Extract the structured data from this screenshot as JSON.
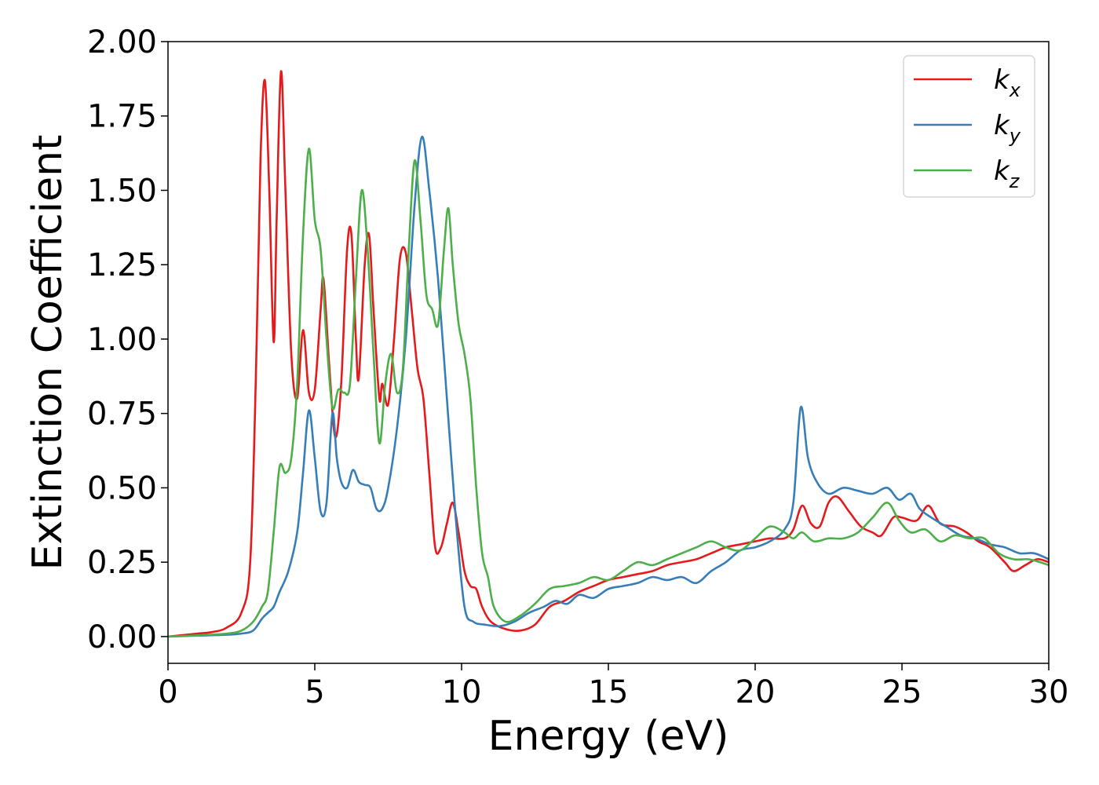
{
  "chart_data": {
    "type": "line",
    "xlabel": "Energy (eV)",
    "ylabel": "Extinction Coefficient",
    "xlim": [
      0,
      30
    ],
    "ylim": [
      -0.09,
      2.0
    ],
    "xticks": [
      "0",
      "5",
      "10",
      "15",
      "20",
      "25",
      "30"
    ],
    "yticks": [
      "0.00",
      "0.25",
      "0.50",
      "0.75",
      "1.00",
      "1.25",
      "1.50",
      "1.75",
      "2.00"
    ],
    "grid": false,
    "legend_position": "top-right",
    "series": [
      {
        "name": "k",
        "subscript": "x",
        "color": "#e41a1c",
        "points": [
          [
            0,
            0.0
          ],
          [
            1,
            0.01
          ],
          [
            1.5,
            0.015
          ],
          [
            2,
            0.03
          ],
          [
            2.5,
            0.08
          ],
          [
            2.8,
            0.25
          ],
          [
            3.0,
            0.9
          ],
          [
            3.15,
            1.6
          ],
          [
            3.3,
            1.87
          ],
          [
            3.45,
            1.5
          ],
          [
            3.6,
            0.99
          ],
          [
            3.7,
            1.4
          ],
          [
            3.85,
            1.9
          ],
          [
            4.0,
            1.5
          ],
          [
            4.2,
            0.95
          ],
          [
            4.4,
            0.8
          ],
          [
            4.6,
            1.03
          ],
          [
            4.8,
            0.82
          ],
          [
            5.0,
            0.83
          ],
          [
            5.2,
            1.1
          ],
          [
            5.3,
            1.2
          ],
          [
            5.5,
            0.9
          ],
          [
            5.7,
            0.67
          ],
          [
            5.9,
            0.85
          ],
          [
            6.1,
            1.3
          ],
          [
            6.25,
            1.35
          ],
          [
            6.4,
            1.0
          ],
          [
            6.5,
            0.87
          ],
          [
            6.7,
            1.25
          ],
          [
            6.85,
            1.35
          ],
          [
            7.0,
            1.1
          ],
          [
            7.2,
            0.8
          ],
          [
            7.3,
            0.85
          ],
          [
            7.5,
            0.78
          ],
          [
            7.7,
            1.0
          ],
          [
            7.9,
            1.27
          ],
          [
            8.1,
            1.29
          ],
          [
            8.3,
            1.1
          ],
          [
            8.5,
            0.9
          ],
          [
            8.7,
            0.8
          ],
          [
            8.9,
            0.55
          ],
          [
            9.1,
            0.3
          ],
          [
            9.3,
            0.3
          ],
          [
            9.5,
            0.38
          ],
          [
            9.7,
            0.45
          ],
          [
            9.9,
            0.35
          ],
          [
            10.1,
            0.22
          ],
          [
            10.3,
            0.17
          ],
          [
            10.5,
            0.16
          ],
          [
            10.7,
            0.1
          ],
          [
            11.0,
            0.05
          ],
          [
            11.5,
            0.025
          ],
          [
            12.0,
            0.02
          ],
          [
            12.5,
            0.04
          ],
          [
            13.0,
            0.1
          ],
          [
            13.5,
            0.12
          ],
          [
            14.0,
            0.15
          ],
          [
            14.5,
            0.17
          ],
          [
            15.0,
            0.19
          ],
          [
            15.5,
            0.2
          ],
          [
            16.0,
            0.21
          ],
          [
            16.5,
            0.22
          ],
          [
            17.0,
            0.24
          ],
          [
            17.5,
            0.25
          ],
          [
            18.0,
            0.26
          ],
          [
            18.5,
            0.28
          ],
          [
            19.0,
            0.3
          ],
          [
            19.5,
            0.31
          ],
          [
            20.0,
            0.32
          ],
          [
            20.5,
            0.33
          ],
          [
            21.0,
            0.33
          ],
          [
            21.3,
            0.36
          ],
          [
            21.6,
            0.44
          ],
          [
            21.9,
            0.38
          ],
          [
            22.2,
            0.37
          ],
          [
            22.5,
            0.45
          ],
          [
            22.8,
            0.47
          ],
          [
            23.2,
            0.42
          ],
          [
            23.6,
            0.37
          ],
          [
            24.0,
            0.35
          ],
          [
            24.3,
            0.34
          ],
          [
            24.7,
            0.4
          ],
          [
            25.0,
            0.4
          ],
          [
            25.5,
            0.39
          ],
          [
            25.9,
            0.44
          ],
          [
            26.3,
            0.38
          ],
          [
            26.8,
            0.37
          ],
          [
            27.2,
            0.35
          ],
          [
            27.6,
            0.32
          ],
          [
            28.0,
            0.3
          ],
          [
            28.5,
            0.25
          ],
          [
            28.8,
            0.22
          ],
          [
            29.2,
            0.24
          ],
          [
            29.6,
            0.26
          ],
          [
            30.0,
            0.25
          ]
        ]
      },
      {
        "name": "k",
        "subscript": "y",
        "color": "#377eb8",
        "points": [
          [
            0,
            0.0
          ],
          [
            1,
            0.003
          ],
          [
            2,
            0.006
          ],
          [
            2.5,
            0.01
          ],
          [
            2.9,
            0.02
          ],
          [
            3.2,
            0.06
          ],
          [
            3.4,
            0.08
          ],
          [
            3.6,
            0.1
          ],
          [
            3.8,
            0.15
          ],
          [
            4.1,
            0.22
          ],
          [
            4.4,
            0.35
          ],
          [
            4.6,
            0.55
          ],
          [
            4.8,
            0.76
          ],
          [
            5.0,
            0.6
          ],
          [
            5.2,
            0.42
          ],
          [
            5.4,
            0.45
          ],
          [
            5.6,
            0.75
          ],
          [
            5.75,
            0.6
          ],
          [
            5.9,
            0.52
          ],
          [
            6.1,
            0.5
          ],
          [
            6.3,
            0.56
          ],
          [
            6.5,
            0.52
          ],
          [
            6.7,
            0.51
          ],
          [
            6.9,
            0.5
          ],
          [
            7.1,
            0.43
          ],
          [
            7.3,
            0.43
          ],
          [
            7.5,
            0.5
          ],
          [
            7.8,
            0.7
          ],
          [
            8.1,
            1.0
          ],
          [
            8.4,
            1.45
          ],
          [
            8.65,
            1.68
          ],
          [
            8.9,
            1.5
          ],
          [
            9.2,
            1.2
          ],
          [
            9.5,
            0.8
          ],
          [
            9.8,
            0.4
          ],
          [
            10.1,
            0.1
          ],
          [
            10.4,
            0.05
          ],
          [
            10.8,
            0.04
          ],
          [
            11.3,
            0.035
          ],
          [
            11.8,
            0.05
          ],
          [
            12.3,
            0.08
          ],
          [
            12.8,
            0.1
          ],
          [
            13.2,
            0.12
          ],
          [
            13.6,
            0.11
          ],
          [
            14.0,
            0.14
          ],
          [
            14.5,
            0.13
          ],
          [
            15.0,
            0.16
          ],
          [
            15.5,
            0.17
          ],
          [
            16.0,
            0.18
          ],
          [
            16.5,
            0.2
          ],
          [
            17.0,
            0.19
          ],
          [
            17.5,
            0.2
          ],
          [
            18.0,
            0.18
          ],
          [
            18.5,
            0.22
          ],
          [
            19.0,
            0.25
          ],
          [
            19.5,
            0.29
          ],
          [
            20.0,
            0.3
          ],
          [
            20.5,
            0.32
          ],
          [
            21.0,
            0.36
          ],
          [
            21.3,
            0.45
          ],
          [
            21.55,
            0.77
          ],
          [
            21.8,
            0.6
          ],
          [
            22.1,
            0.52
          ],
          [
            22.5,
            0.48
          ],
          [
            23.0,
            0.5
          ],
          [
            23.5,
            0.49
          ],
          [
            24.0,
            0.48
          ],
          [
            24.5,
            0.5
          ],
          [
            24.9,
            0.46
          ],
          [
            25.3,
            0.48
          ],
          [
            25.6,
            0.43
          ],
          [
            26.0,
            0.4
          ],
          [
            26.5,
            0.37
          ],
          [
            27.0,
            0.34
          ],
          [
            27.5,
            0.33
          ],
          [
            28.0,
            0.31
          ],
          [
            28.5,
            0.3
          ],
          [
            29.0,
            0.28
          ],
          [
            29.5,
            0.28
          ],
          [
            30.0,
            0.26
          ]
        ]
      },
      {
        "name": "k",
        "subscript": "z",
        "color": "#4daf4a",
        "points": [
          [
            0,
            0.0
          ],
          [
            1,
            0.004
          ],
          [
            2,
            0.01
          ],
          [
            2.5,
            0.02
          ],
          [
            2.9,
            0.05
          ],
          [
            3.2,
            0.1
          ],
          [
            3.4,
            0.15
          ],
          [
            3.6,
            0.35
          ],
          [
            3.8,
            0.57
          ],
          [
            4.0,
            0.55
          ],
          [
            4.2,
            0.6
          ],
          [
            4.4,
            0.85
          ],
          [
            4.6,
            1.35
          ],
          [
            4.8,
            1.64
          ],
          [
            5.0,
            1.4
          ],
          [
            5.2,
            1.3
          ],
          [
            5.4,
            1.0
          ],
          [
            5.6,
            0.77
          ],
          [
            5.8,
            0.83
          ],
          [
            6.0,
            0.82
          ],
          [
            6.2,
            0.85
          ],
          [
            6.4,
            1.2
          ],
          [
            6.6,
            1.5
          ],
          [
            6.8,
            1.3
          ],
          [
            7.0,
            0.95
          ],
          [
            7.2,
            0.65
          ],
          [
            7.4,
            0.85
          ],
          [
            7.6,
            0.95
          ],
          [
            7.8,
            0.82
          ],
          [
            8.0,
            0.9
          ],
          [
            8.2,
            1.3
          ],
          [
            8.4,
            1.6
          ],
          [
            8.6,
            1.4
          ],
          [
            8.8,
            1.15
          ],
          [
            9.0,
            1.1
          ],
          [
            9.2,
            1.05
          ],
          [
            9.4,
            1.3
          ],
          [
            9.55,
            1.44
          ],
          [
            9.7,
            1.25
          ],
          [
            9.9,
            1.05
          ],
          [
            10.1,
            0.95
          ],
          [
            10.3,
            0.8
          ],
          [
            10.5,
            0.5
          ],
          [
            10.7,
            0.28
          ],
          [
            10.9,
            0.2
          ],
          [
            11.1,
            0.1
          ],
          [
            11.5,
            0.05
          ],
          [
            12.0,
            0.07
          ],
          [
            12.5,
            0.11
          ],
          [
            13.0,
            0.16
          ],
          [
            13.5,
            0.17
          ],
          [
            14.0,
            0.18
          ],
          [
            14.5,
            0.2
          ],
          [
            15.0,
            0.19
          ],
          [
            15.5,
            0.22
          ],
          [
            16.0,
            0.25
          ],
          [
            16.5,
            0.24
          ],
          [
            17.0,
            0.26
          ],
          [
            17.5,
            0.28
          ],
          [
            18.0,
            0.3
          ],
          [
            18.5,
            0.32
          ],
          [
            19.0,
            0.3
          ],
          [
            19.5,
            0.29
          ],
          [
            20.0,
            0.33
          ],
          [
            20.5,
            0.37
          ],
          [
            21.0,
            0.35
          ],
          [
            21.3,
            0.33
          ],
          [
            21.6,
            0.35
          ],
          [
            22.0,
            0.32
          ],
          [
            22.5,
            0.33
          ],
          [
            23.0,
            0.33
          ],
          [
            23.5,
            0.35
          ],
          [
            24.0,
            0.4
          ],
          [
            24.5,
            0.45
          ],
          [
            24.9,
            0.39
          ],
          [
            25.3,
            0.35
          ],
          [
            25.8,
            0.36
          ],
          [
            26.3,
            0.32
          ],
          [
            26.8,
            0.34
          ],
          [
            27.3,
            0.33
          ],
          [
            27.8,
            0.33
          ],
          [
            28.3,
            0.28
          ],
          [
            28.8,
            0.26
          ],
          [
            29.3,
            0.26
          ],
          [
            29.7,
            0.25
          ],
          [
            30.0,
            0.24
          ]
        ]
      }
    ]
  }
}
